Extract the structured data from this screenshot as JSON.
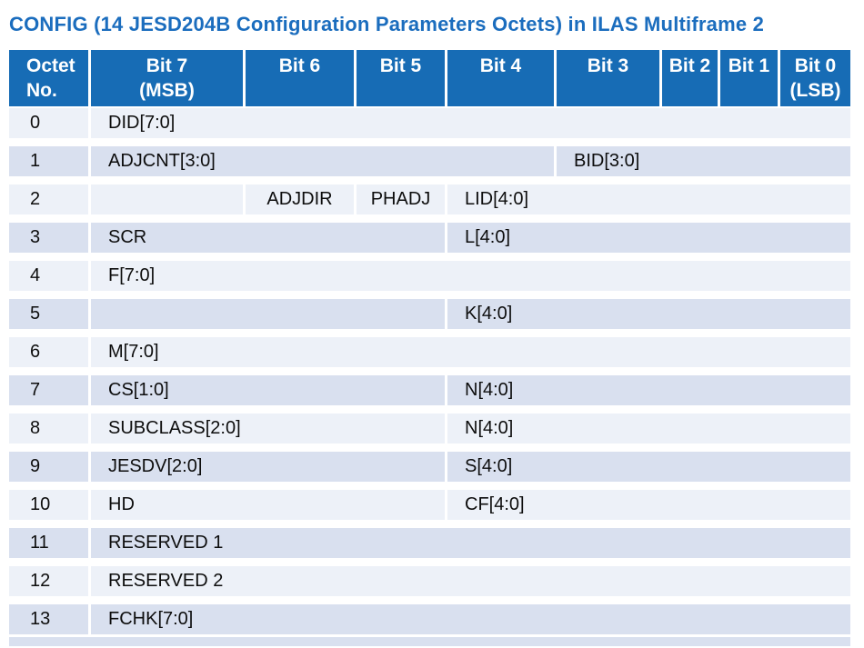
{
  "title": "CONFIG (14 JESD204B Configuration Parameters Octets) in ILAS Multiframe 2",
  "colors": {
    "title_text": "#1b6dbe",
    "header_bg": "#176cb5",
    "header_text": "#ffffff",
    "row_even_bg": "#edf1f8",
    "row_odd_bg": "#d9e0ef",
    "cell_text": "#0d0d0d"
  },
  "table": {
    "columns": [
      {
        "key": "octet-no",
        "label": "Octet\nNo."
      },
      {
        "key": "bit-7",
        "label": "Bit 7\n(MSB)"
      },
      {
        "key": "bit-6",
        "label": "Bit 6"
      },
      {
        "key": "bit-5",
        "label": "Bit 5"
      },
      {
        "key": "bit-4",
        "label": "Bit 4"
      },
      {
        "key": "bit-3",
        "label": "Bit 3"
      },
      {
        "key": "bit-2",
        "label": "Bit 2"
      },
      {
        "key": "bit-1",
        "label": "Bit 1"
      },
      {
        "key": "bit-0",
        "label": "Bit 0\n(LSB)"
      }
    ],
    "rows": [
      {
        "octet": "0",
        "cells": [
          {
            "label": "DID[7:0]",
            "span": 8
          }
        ]
      },
      {
        "octet": "1",
        "cells": [
          {
            "label": "ADJCNT[3:0]",
            "span": 4
          },
          {
            "label": "BID[3:0]",
            "span": 4
          }
        ]
      },
      {
        "octet": "2",
        "cells": [
          {
            "label": "",
            "span": 1
          },
          {
            "label": "ADJDIR",
            "span": 1,
            "align": "center"
          },
          {
            "label": "PHADJ",
            "span": 1,
            "align": "center"
          },
          {
            "label": "LID[4:0]",
            "span": 5
          }
        ]
      },
      {
        "octet": "3",
        "cells": [
          {
            "label": "SCR",
            "span": 3
          },
          {
            "label": "L[4:0]",
            "span": 5
          }
        ]
      },
      {
        "octet": "4",
        "cells": [
          {
            "label": "F[7:0]",
            "span": 8
          }
        ]
      },
      {
        "octet": "5",
        "cells": [
          {
            "label": "",
            "span": 3
          },
          {
            "label": "K[4:0]",
            "span": 5
          }
        ]
      },
      {
        "octet": "6",
        "cells": [
          {
            "label": "M[7:0]",
            "span": 8
          }
        ]
      },
      {
        "octet": "7",
        "cells": [
          {
            "label": "CS[1:0]",
            "span": 3
          },
          {
            "label": "N[4:0]",
            "span": 5
          }
        ]
      },
      {
        "octet": "8",
        "cells": [
          {
            "label": "SUBCLASS[2:0]",
            "span": 3
          },
          {
            "label": "N[4:0]",
            "span": 5
          }
        ]
      },
      {
        "octet": "9",
        "cells": [
          {
            "label": "JESDV[2:0]",
            "span": 3
          },
          {
            "label": "S[4:0]",
            "span": 5
          }
        ]
      },
      {
        "octet": "10",
        "cells": [
          {
            "label": "HD",
            "span": 3
          },
          {
            "label": "CF[4:0]",
            "span": 5
          }
        ]
      },
      {
        "octet": "11",
        "cells": [
          {
            "label": "RESERVED 1",
            "span": 8
          }
        ]
      },
      {
        "octet": "12",
        "cells": [
          {
            "label": "RESERVED 2",
            "span": 8
          }
        ]
      },
      {
        "octet": "13",
        "cells": [
          {
            "label": "FCHK[7:0]",
            "span": 8
          }
        ]
      }
    ]
  }
}
